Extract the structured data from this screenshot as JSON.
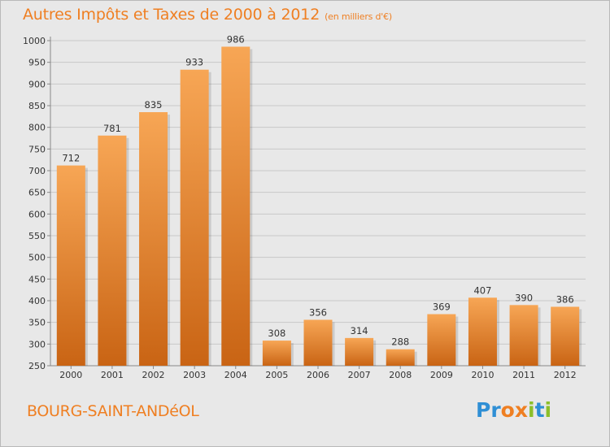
{
  "header": {
    "title": "Autres Impôts et Taxes de 2000 à 2012",
    "unit": "(en milliers d'€)"
  },
  "footer": {
    "town": "BOURG-SAINT-ANDéOL",
    "logo": [
      "P",
      "r",
      "o",
      "x",
      "i",
      "t",
      "i"
    ],
    "logo_colors": [
      "#2f8fd5",
      "#2f8fd5",
      "#ef7f22",
      "#ef7f22",
      "#8cbf2a",
      "#2f8fd5",
      "#8cbf2a"
    ]
  },
  "colors": {
    "bar_top": "#f7a655",
    "bar_bottom": "#c96414",
    "title": "#ef7f22",
    "grid": "#c8c8c8",
    "plot_bg": "#e8e8e8"
  },
  "chart_data": {
    "type": "bar",
    "title": "Autres Impôts et Taxes de 2000 à 2012",
    "subtitle": "(en milliers d'€)",
    "categories": [
      "2000",
      "2001",
      "2002",
      "2003",
      "2004",
      "2005",
      "2006",
      "2007",
      "2008",
      "2009",
      "2010",
      "2011",
      "2012"
    ],
    "values": [
      712,
      781,
      835,
      933,
      986,
      308,
      356,
      314,
      288,
      369,
      407,
      390,
      386
    ],
    "ylim": [
      250,
      1000
    ],
    "yticks": [
      250,
      300,
      350,
      400,
      450,
      500,
      550,
      600,
      650,
      700,
      750,
      800,
      850,
      900,
      950,
      1000
    ],
    "grid": true,
    "data_labels": true
  }
}
